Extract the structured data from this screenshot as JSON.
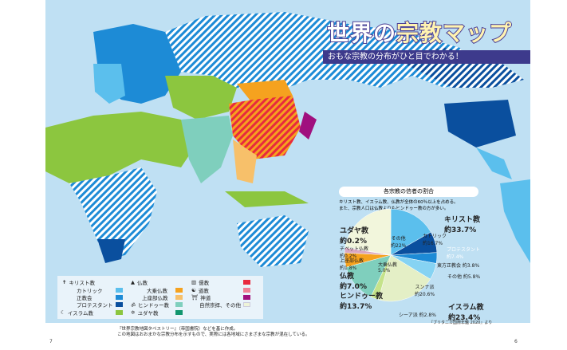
{
  "title": {
    "main_a": "世界の",
    "main_b": "宗教マップ",
    "subtitle": "おもな宗教の分布がひと目でわかる！"
  },
  "colors": {
    "ocean": "#bfe0f3",
    "catholic": "#5bbfed",
    "orthodox": "#1d8bd6",
    "protestant": "#0a4f9e",
    "islam": "#8cc63f",
    "mahayana": "#f5a21f",
    "theravada": "#f7c06a",
    "hindu": "#7fcfbd",
    "judaism": "#12966e",
    "confucianism": "#e8293e",
    "taoism": "#f07f95",
    "shinto": "#a0107e",
    "other": "#eef4d8"
  },
  "legend": {
    "christianity": "キリスト教",
    "catholic": "カトリック",
    "orthodox": "正教会",
    "protestant": "プロテスタント",
    "islam": "イスラム教",
    "buddhism": "仏教",
    "mahayana": "大乗仏教",
    "theravada": "上座部仏教",
    "hindu": "ヒンドゥー教",
    "judaism": "ユダヤ教",
    "confucianism": "儒教",
    "taoism": "道教",
    "shinto": "神道",
    "other": "自然崇拝、その他"
  },
  "pie": {
    "title": "各宗教の信者の割合",
    "desc1": "キリスト教、イスラム教、仏教が全体の60％以上を占める。",
    "desc2": "また、宗教人口は仏教よりもヒンドゥー教の方が多い。",
    "source": "『ブリタニカ国際年鑑 2020』より",
    "groups": {
      "christianity": "キリスト教",
      "christianity_pct": "約33.7%",
      "islam": "イスラム教",
      "islam_pct": "約23.4%",
      "hindu": "ヒンドゥー教",
      "hindu_pct": "約13.7%",
      "buddhism": "仏教",
      "buddhism_pct": "約7.0%",
      "judaism": "ユダヤ教",
      "judaism_pct": "約0.2%"
    },
    "labels": {
      "catholic": "カトリック",
      "catholic_pct": "約16.7%",
      "protestant": "プロテスタント",
      "protestant_pct": "約7.4%",
      "orthodox": "東方正教会 約3.8%",
      "other_christian": "その他 約5.8%",
      "sunni": "スンナ派",
      "sunni_pct": "約20.6%",
      "shia": "シーア派 約2.8%",
      "mahayana": "大乗仏教",
      "mahayana_pct": "5.0%",
      "theravada": "上座部仏教",
      "theravada_pct": "約1.8%",
      "tibetan": "チベット仏教",
      "tibetan_pct": "約0.2%",
      "other": "その他",
      "other_pct": "約22%"
    },
    "slices": [
      {
        "name": "catholic",
        "value": 16.7,
        "color": "#5bbfed"
      },
      {
        "name": "protestant",
        "value": 7.4,
        "color": "#0a4f9e"
      },
      {
        "name": "orthodox",
        "value": 3.8,
        "color": "#1d8bd6"
      },
      {
        "name": "other_christian",
        "value": 5.8,
        "color": "#86d3f3"
      },
      {
        "name": "sunni",
        "value": 20.6,
        "color": "#e4efc6"
      },
      {
        "name": "shia",
        "value": 2.8,
        "color": "#c5e38a"
      },
      {
        "name": "hindu",
        "value": 13.7,
        "color": "#7fcfbd"
      },
      {
        "name": "mahayana",
        "value": 5.0,
        "color": "#f5a21f"
      },
      {
        "name": "theravada",
        "value": 1.8,
        "color": "#d9a7c0"
      },
      {
        "name": "tibetan",
        "value": 0.2,
        "color": "#f7c06a"
      },
      {
        "name": "judaism",
        "value": 0.2,
        "color": "#12966e"
      },
      {
        "name": "other",
        "value": 22.0,
        "color": "#f2f6dc"
      }
    ]
  },
  "footer": {
    "line1": "『世界宗教地図タペストリー』（帝国書院）などを基に作成。",
    "line2": "この地図はおおまかな宗教分布を示すもので、実際には各地域にさまざまな宗教が混在している。"
  },
  "page_numbers": {
    "left": "7",
    "right": "6"
  }
}
